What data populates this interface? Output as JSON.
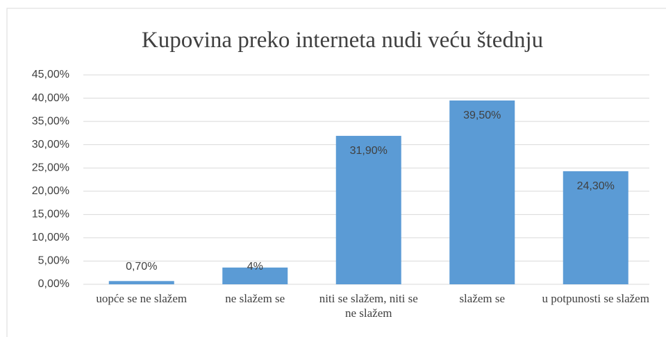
{
  "chart_data": {
    "type": "bar",
    "title": "Kupovina preko interneta nudi veću štednju",
    "categories": [
      "uopće se ne slažem",
      "ne slažem se",
      "niti se slažem, niti se ne slažem",
      "slažem se",
      "u potpunosti se slažem"
    ],
    "values": [
      0.7,
      3.6,
      31.9,
      39.5,
      24.3
    ],
    "value_labels": [
      "0,70%",
      "4%",
      "31,90%",
      "39,50%",
      "24,30%"
    ],
    "color": "#5b9bd5",
    "ylim": [
      0,
      45
    ],
    "yticks": [
      {
        "value": 0,
        "label": "0,00%"
      },
      {
        "value": 5,
        "label": "5,00%"
      },
      {
        "value": 10,
        "label": "10,00%"
      },
      {
        "value": 15,
        "label": "15,00%"
      },
      {
        "value": 20,
        "label": "20,00%"
      },
      {
        "value": 25,
        "label": "25,00%"
      },
      {
        "value": 30,
        "label": "30,00%"
      },
      {
        "value": 35,
        "label": "35,00%"
      },
      {
        "value": 40,
        "label": "40,00%"
      },
      {
        "value": 45,
        "label": "45,00%"
      }
    ],
    "grid": true
  }
}
